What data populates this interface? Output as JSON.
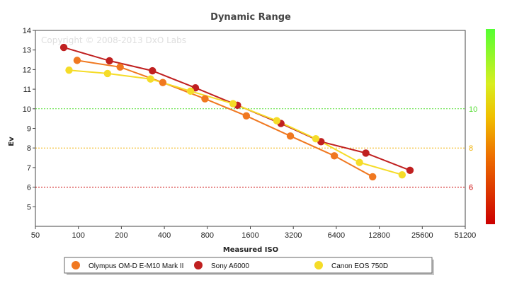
{
  "chart_data": {
    "type": "scatter",
    "title": "Dynamic Range",
    "copyright": "Copyright © 2008-2013 DxO Labs",
    "xlabel": "Measured ISO",
    "ylabel": "Ev",
    "x_scale": "log2",
    "xlim": [
      50,
      51200
    ],
    "ylim": [
      4,
      14
    ],
    "x_ticks": [
      "50",
      "100",
      "200",
      "400",
      "800",
      "1600",
      "3200",
      "6400",
      "12800",
      "25600",
      "51200"
    ],
    "y_ticks": [
      "5",
      "6",
      "7",
      "8",
      "9",
      "10",
      "11",
      "12",
      "13",
      "14"
    ],
    "reference_lines": [
      {
        "value": 10,
        "label": "10",
        "color": "#55dd33"
      },
      {
        "value": 8,
        "label": "8",
        "color": "#f0b000"
      },
      {
        "value": 6,
        "label": "6",
        "color": "#cc0000"
      }
    ],
    "series": [
      {
        "name": "Olympus OM-D E-M10 Mark II",
        "color": "#f07820",
        "points": [
          [
            98,
            12.47
          ],
          [
            196,
            12.13
          ],
          [
            390,
            11.34
          ],
          [
            770,
            10.51
          ],
          [
            1500,
            9.64
          ],
          [
            3050,
            8.61
          ],
          [
            6200,
            7.6
          ],
          [
            11500,
            6.53
          ]
        ]
      },
      {
        "name": "Sony A6000",
        "color": "#c02020",
        "points": [
          [
            79,
            13.13
          ],
          [
            165,
            12.45
          ],
          [
            330,
            11.94
          ],
          [
            660,
            11.07
          ],
          [
            1300,
            10.18
          ],
          [
            2620,
            9.25
          ],
          [
            5000,
            8.32
          ],
          [
            10300,
            7.74
          ],
          [
            21000,
            6.86
          ]
        ]
      },
      {
        "name": "Canon EOS 750D",
        "color": "#f5dc28",
        "points": [
          [
            86,
            11.97
          ],
          [
            160,
            11.8
          ],
          [
            320,
            11.52
          ],
          [
            610,
            10.9
          ],
          [
            1210,
            10.26
          ],
          [
            2450,
            9.39
          ],
          [
            4600,
            8.47
          ],
          [
            9300,
            7.26
          ],
          [
            18500,
            6.63
          ]
        ]
      }
    ],
    "color_scale": {
      "colors": [
        "#cc0000",
        "#f0b000",
        "#e8e020",
        "#55ff33"
      ]
    },
    "grid": false,
    "legend_position": "bottom"
  }
}
